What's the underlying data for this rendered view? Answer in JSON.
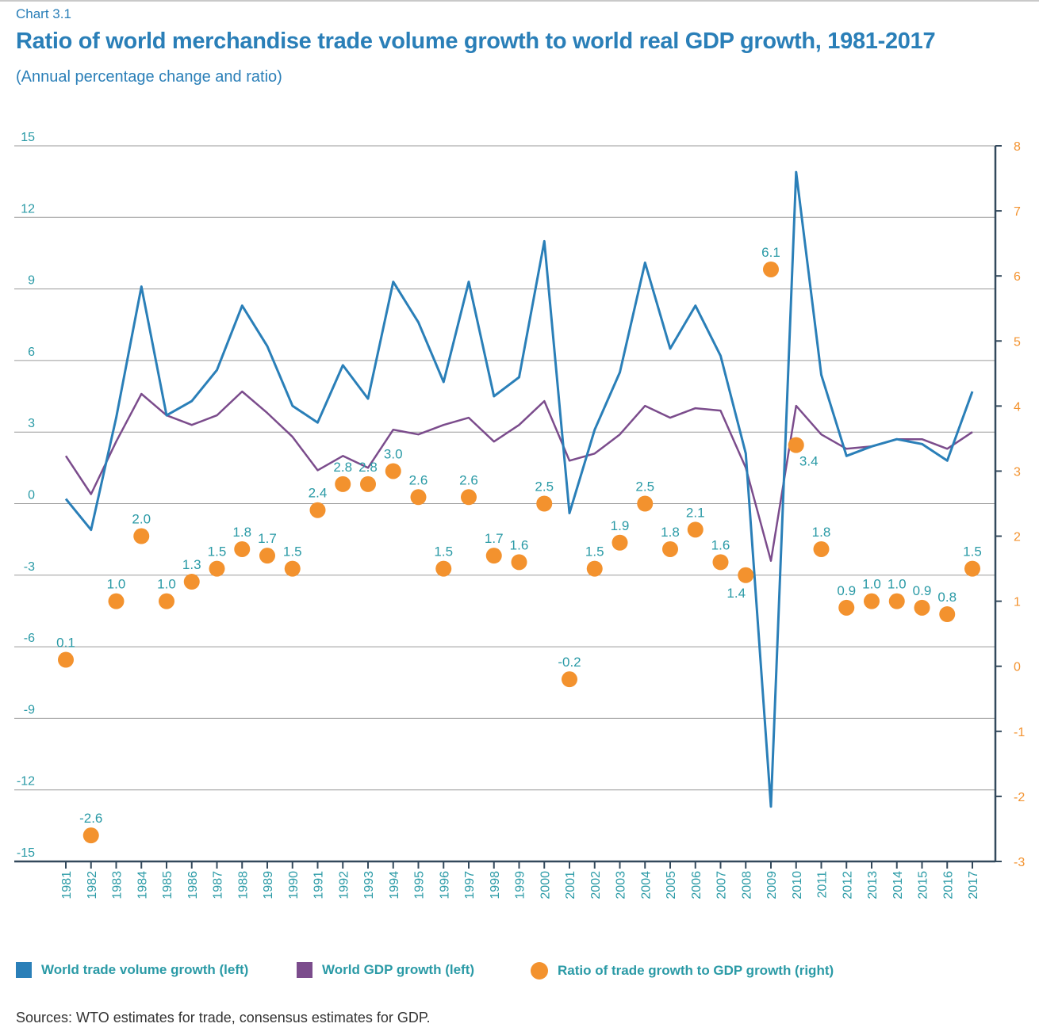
{
  "header": {
    "chart_label": "Chart 3.1",
    "title": "Ratio of world merchandise trade volume growth to world real GDP growth, 1981-2017",
    "subtitle": "(Annual percentage change and ratio)"
  },
  "legend": {
    "trade_label": "World trade volume growth (left)",
    "gdp_label": "World GDP growth (left)",
    "ratio_label": "Ratio of trade growth to GDP growth (right)"
  },
  "footer": {
    "source": "Sources: WTO estimates for trade, consensus estimates for GDP."
  },
  "colors": {
    "trade": "#2a7fb8",
    "gdp": "#7b4c8c",
    "ratio": "#f3922e",
    "left_axis_text": "#2a9aa6",
    "right_axis_text": "#f3922e",
    "grid": "#9a9a9a",
    "axis": "#33495c",
    "label_text": "#2a9aa6"
  },
  "chart_data": {
    "type": "line",
    "x": [
      1981,
      1982,
      1983,
      1984,
      1985,
      1986,
      1987,
      1988,
      1989,
      1990,
      1991,
      1992,
      1993,
      1994,
      1995,
      1996,
      1997,
      1998,
      1999,
      2000,
      2001,
      2002,
      2003,
      2004,
      2005,
      2006,
      2007,
      2008,
      2009,
      2010,
      2011,
      2012,
      2013,
      2014,
      2015,
      2016,
      2017
    ],
    "left_axis": {
      "ylim": [
        -15,
        15
      ],
      "ticks": [
        "15",
        "12",
        "9",
        "6",
        "3",
        "0",
        "-3",
        "-6",
        "-9",
        "-12",
        "-15"
      ]
    },
    "right_axis": {
      "ylim": [
        -3,
        8
      ],
      "ticks": [
        "8",
        "7",
        "6",
        "5",
        "4",
        "3",
        "2",
        "1",
        "0",
        "-1",
        "-2",
        "-3"
      ]
    },
    "grid": true,
    "legend_position": "bottom",
    "series": [
      {
        "name": "World trade volume growth (left)",
        "axis": "left",
        "type": "line",
        "values": [
          0.2,
          -1.1,
          3.6,
          9.1,
          3.7,
          4.3,
          5.6,
          8.3,
          6.6,
          4.1,
          3.4,
          5.8,
          4.4,
          9.3,
          7.6,
          5.1,
          9.3,
          4.5,
          5.3,
          11.0,
          -0.4,
          3.1,
          5.5,
          10.1,
          6.5,
          8.3,
          6.2,
          2.1,
          -12.7,
          13.9,
          5.4,
          2.0,
          2.4,
          2.7,
          2.5,
          1.8,
          4.7
        ]
      },
      {
        "name": "World GDP growth (left)",
        "axis": "left",
        "type": "line",
        "values": [
          2.0,
          0.4,
          2.6,
          4.6,
          3.7,
          3.3,
          3.7,
          4.7,
          3.8,
          2.8,
          1.4,
          2.0,
          1.5,
          3.1,
          2.9,
          3.3,
          3.6,
          2.6,
          3.3,
          4.3,
          1.8,
          2.1,
          2.9,
          4.1,
          3.6,
          4.0,
          3.9,
          1.5,
          -2.4,
          4.1,
          2.9,
          2.3,
          2.4,
          2.7,
          2.7,
          2.3,
          3.0
        ]
      },
      {
        "name": "Ratio of trade growth to GDP growth (right)",
        "axis": "right",
        "type": "scatter",
        "values": [
          0.1,
          -2.6,
          1.0,
          2.0,
          1.0,
          1.3,
          1.5,
          1.8,
          1.7,
          1.5,
          2.4,
          2.8,
          2.8,
          3.0,
          2.6,
          1.5,
          2.6,
          1.7,
          1.6,
          2.5,
          -0.2,
          1.5,
          1.9,
          2.5,
          1.8,
          2.1,
          1.6,
          1.4,
          6.1,
          3.4,
          1.8,
          0.9,
          1.0,
          1.0,
          0.9,
          0.8,
          1.5
        ],
        "labels": [
          "0.1",
          "-2.6",
          "1.0",
          "2.0",
          "1.0",
          "1.3",
          "1.5",
          "1.8",
          "1.7",
          "1.5",
          "2.4",
          "2.8",
          "2.8",
          "3.0",
          "2.6",
          "1.5",
          "2.6",
          "1.7",
          "1.6",
          "2.5",
          "-0.2",
          "1.5",
          "1.9",
          "2.5",
          "1.8",
          "2.1",
          "1.6",
          "1.4",
          "6.1",
          "3.4",
          "1.8",
          "0.9",
          "1.0",
          "1.0",
          "0.9",
          "0.8",
          "1.5"
        ]
      }
    ]
  }
}
